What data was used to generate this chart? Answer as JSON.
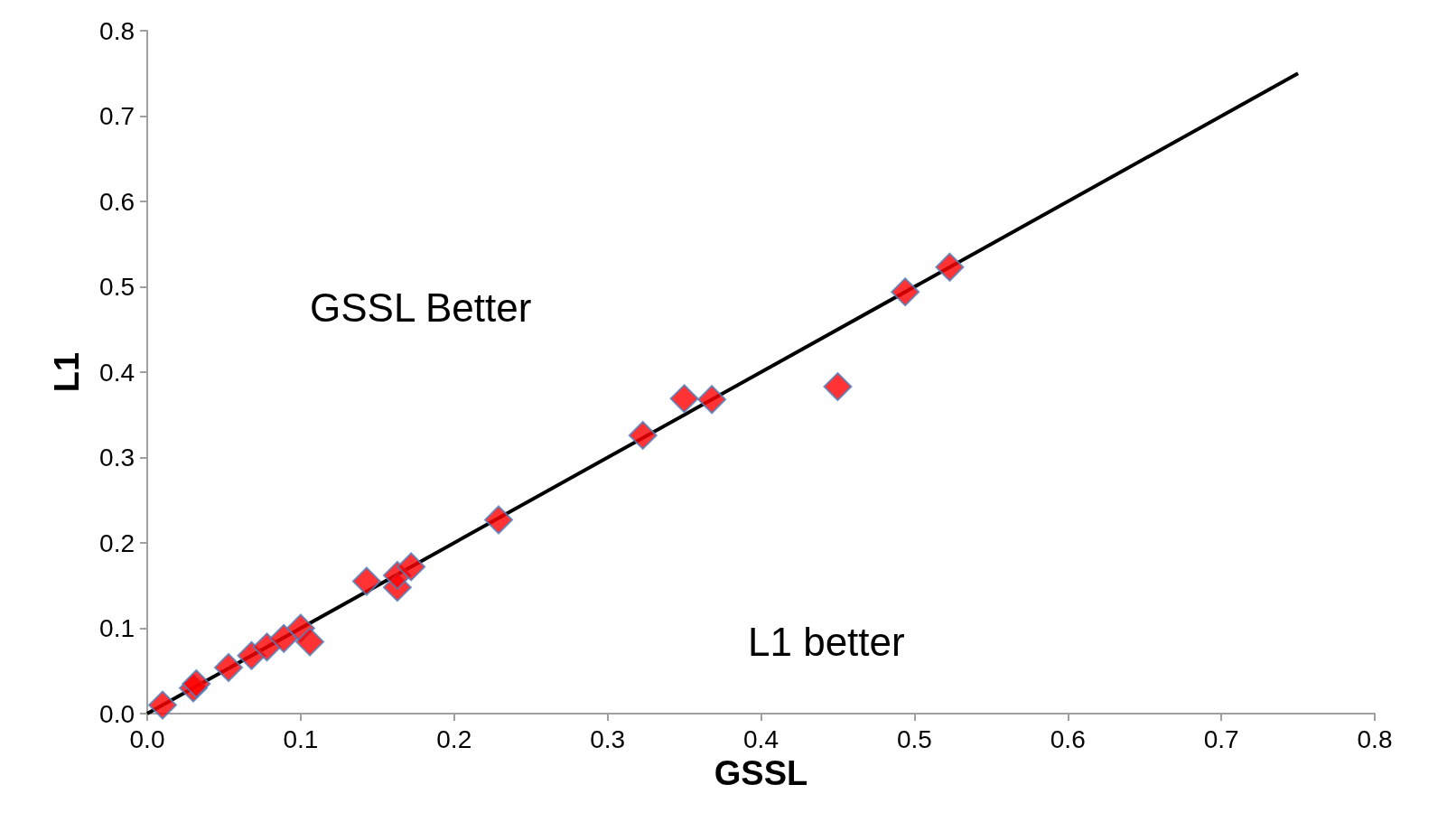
{
  "chart_data": {
    "type": "scatter",
    "xlabel": "GSSL",
    "ylabel": "L1",
    "annotations": [
      "GSSL Better",
      "L1 better"
    ],
    "series": [
      {
        "color": "#ff0000",
        "marker": "diamond",
        "x": [
          0.01,
          0.03,
          0.032,
          0.053,
          0.068,
          0.078,
          0.089,
          0.1,
          0.106,
          0.143,
          0.163,
          0.163,
          0.172,
          0.229,
          0.323,
          0.35,
          0.368,
          0.45,
          0.494,
          0.523
        ],
        "values": [
          0.01,
          0.03,
          0.035,
          0.054,
          0.068,
          0.078,
          0.088,
          0.1,
          0.084,
          0.155,
          0.148,
          0.162,
          0.172,
          0.227,
          0.326,
          0.369,
          0.368,
          0.383,
          0.494,
          0.523
        ]
      },
      {
        "type": "line",
        "color": "#000000",
        "marker": "none",
        "line_style": "solid",
        "x": [
          0,
          0.75
        ],
        "values": [
          0,
          0.75
        ]
      }
    ],
    "xlim": [
      0,
      0.8
    ],
    "ylim": [
      0,
      0.8
    ],
    "xticks": [
      {
        "value": 0,
        "label": "0.0"
      },
      0.1,
      0.2,
      0.3,
      0.4,
      0.5,
      0.6,
      0.7,
      0.8
    ],
    "yticks": [
      {
        "value": 0,
        "label": "0.0"
      },
      0.1,
      0.2,
      0.3,
      0.4,
      0.5,
      0.6,
      0.7,
      0.8
    ],
    "grid": false
  }
}
